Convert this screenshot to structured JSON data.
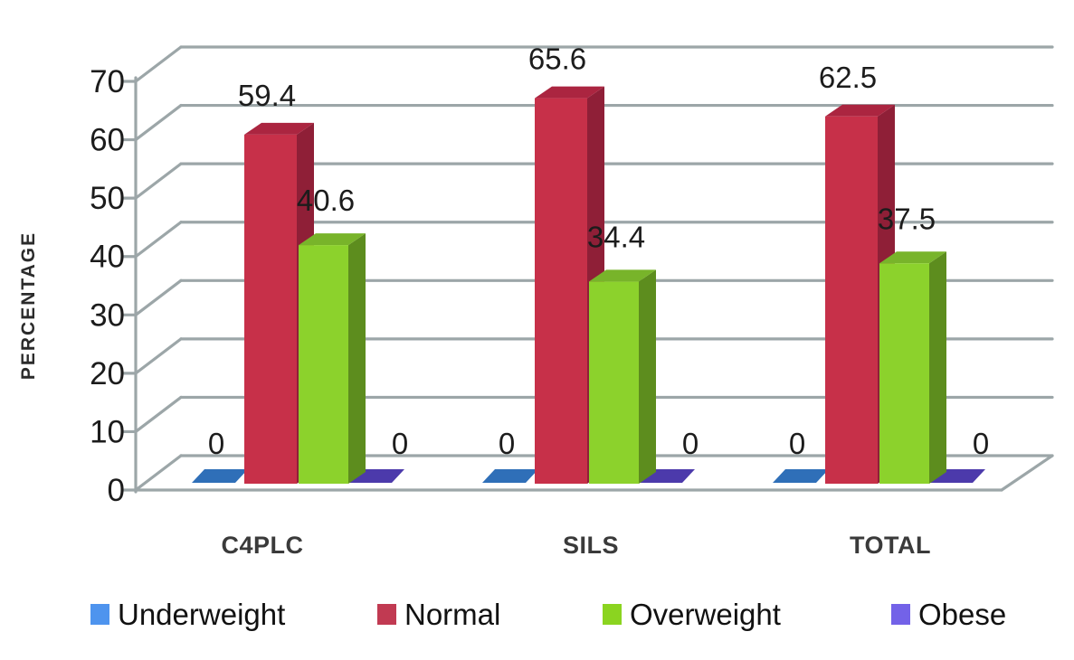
{
  "chart_data": {
    "type": "bar",
    "variant": "3d-clustered-column",
    "title": "",
    "xlabel": "",
    "ylabel": "PERCENTAGE",
    "categories": [
      "C4PLC",
      "SILS",
      "TOTAL"
    ],
    "series": [
      {
        "name": "Underweight",
        "values": [
          0,
          0,
          0
        ],
        "labels": [
          "0",
          "0",
          "0"
        ],
        "color": "#2F6FB8",
        "legend_color": "#4E94EE"
      },
      {
        "name": "Normal",
        "values": [
          59.4,
          65.6,
          62.5
        ],
        "labels": [
          "59.4",
          "65.6",
          "62.5"
        ],
        "color": "#C73049",
        "top_color": "#AB2540",
        "side_color": "#8F1F37",
        "legend_color": "#C13A52"
      },
      {
        "name": "Overweight",
        "values": [
          40.6,
          34.4,
          37.5
        ],
        "labels": [
          "40.6",
          "34.4",
          "37.5"
        ],
        "color": "#8CD22C",
        "top_color": "#78B42A",
        "side_color": "#5D8D1E",
        "legend_color": "#8BD420"
      },
      {
        "name": "Obese",
        "values": [
          0,
          0,
          0
        ],
        "labels": [
          "0",
          "0",
          "0"
        ],
        "color": "#4C3AAB",
        "legend_color": "#7362E8"
      }
    ],
    "y_axis": {
      "min": 0,
      "max": 70,
      "step": 10,
      "tick_labels": [
        "0",
        "10",
        "20",
        "30",
        "40",
        "50",
        "60",
        "70"
      ]
    },
    "grid": true,
    "legend_position": "bottom",
    "colors": {
      "gridline": "#9CA6A8",
      "text": "#1C1C1C",
      "category_text": "#3A3A3A",
      "axis_label_text": "#2B2B2B",
      "background": "#FFFFFF"
    }
  }
}
